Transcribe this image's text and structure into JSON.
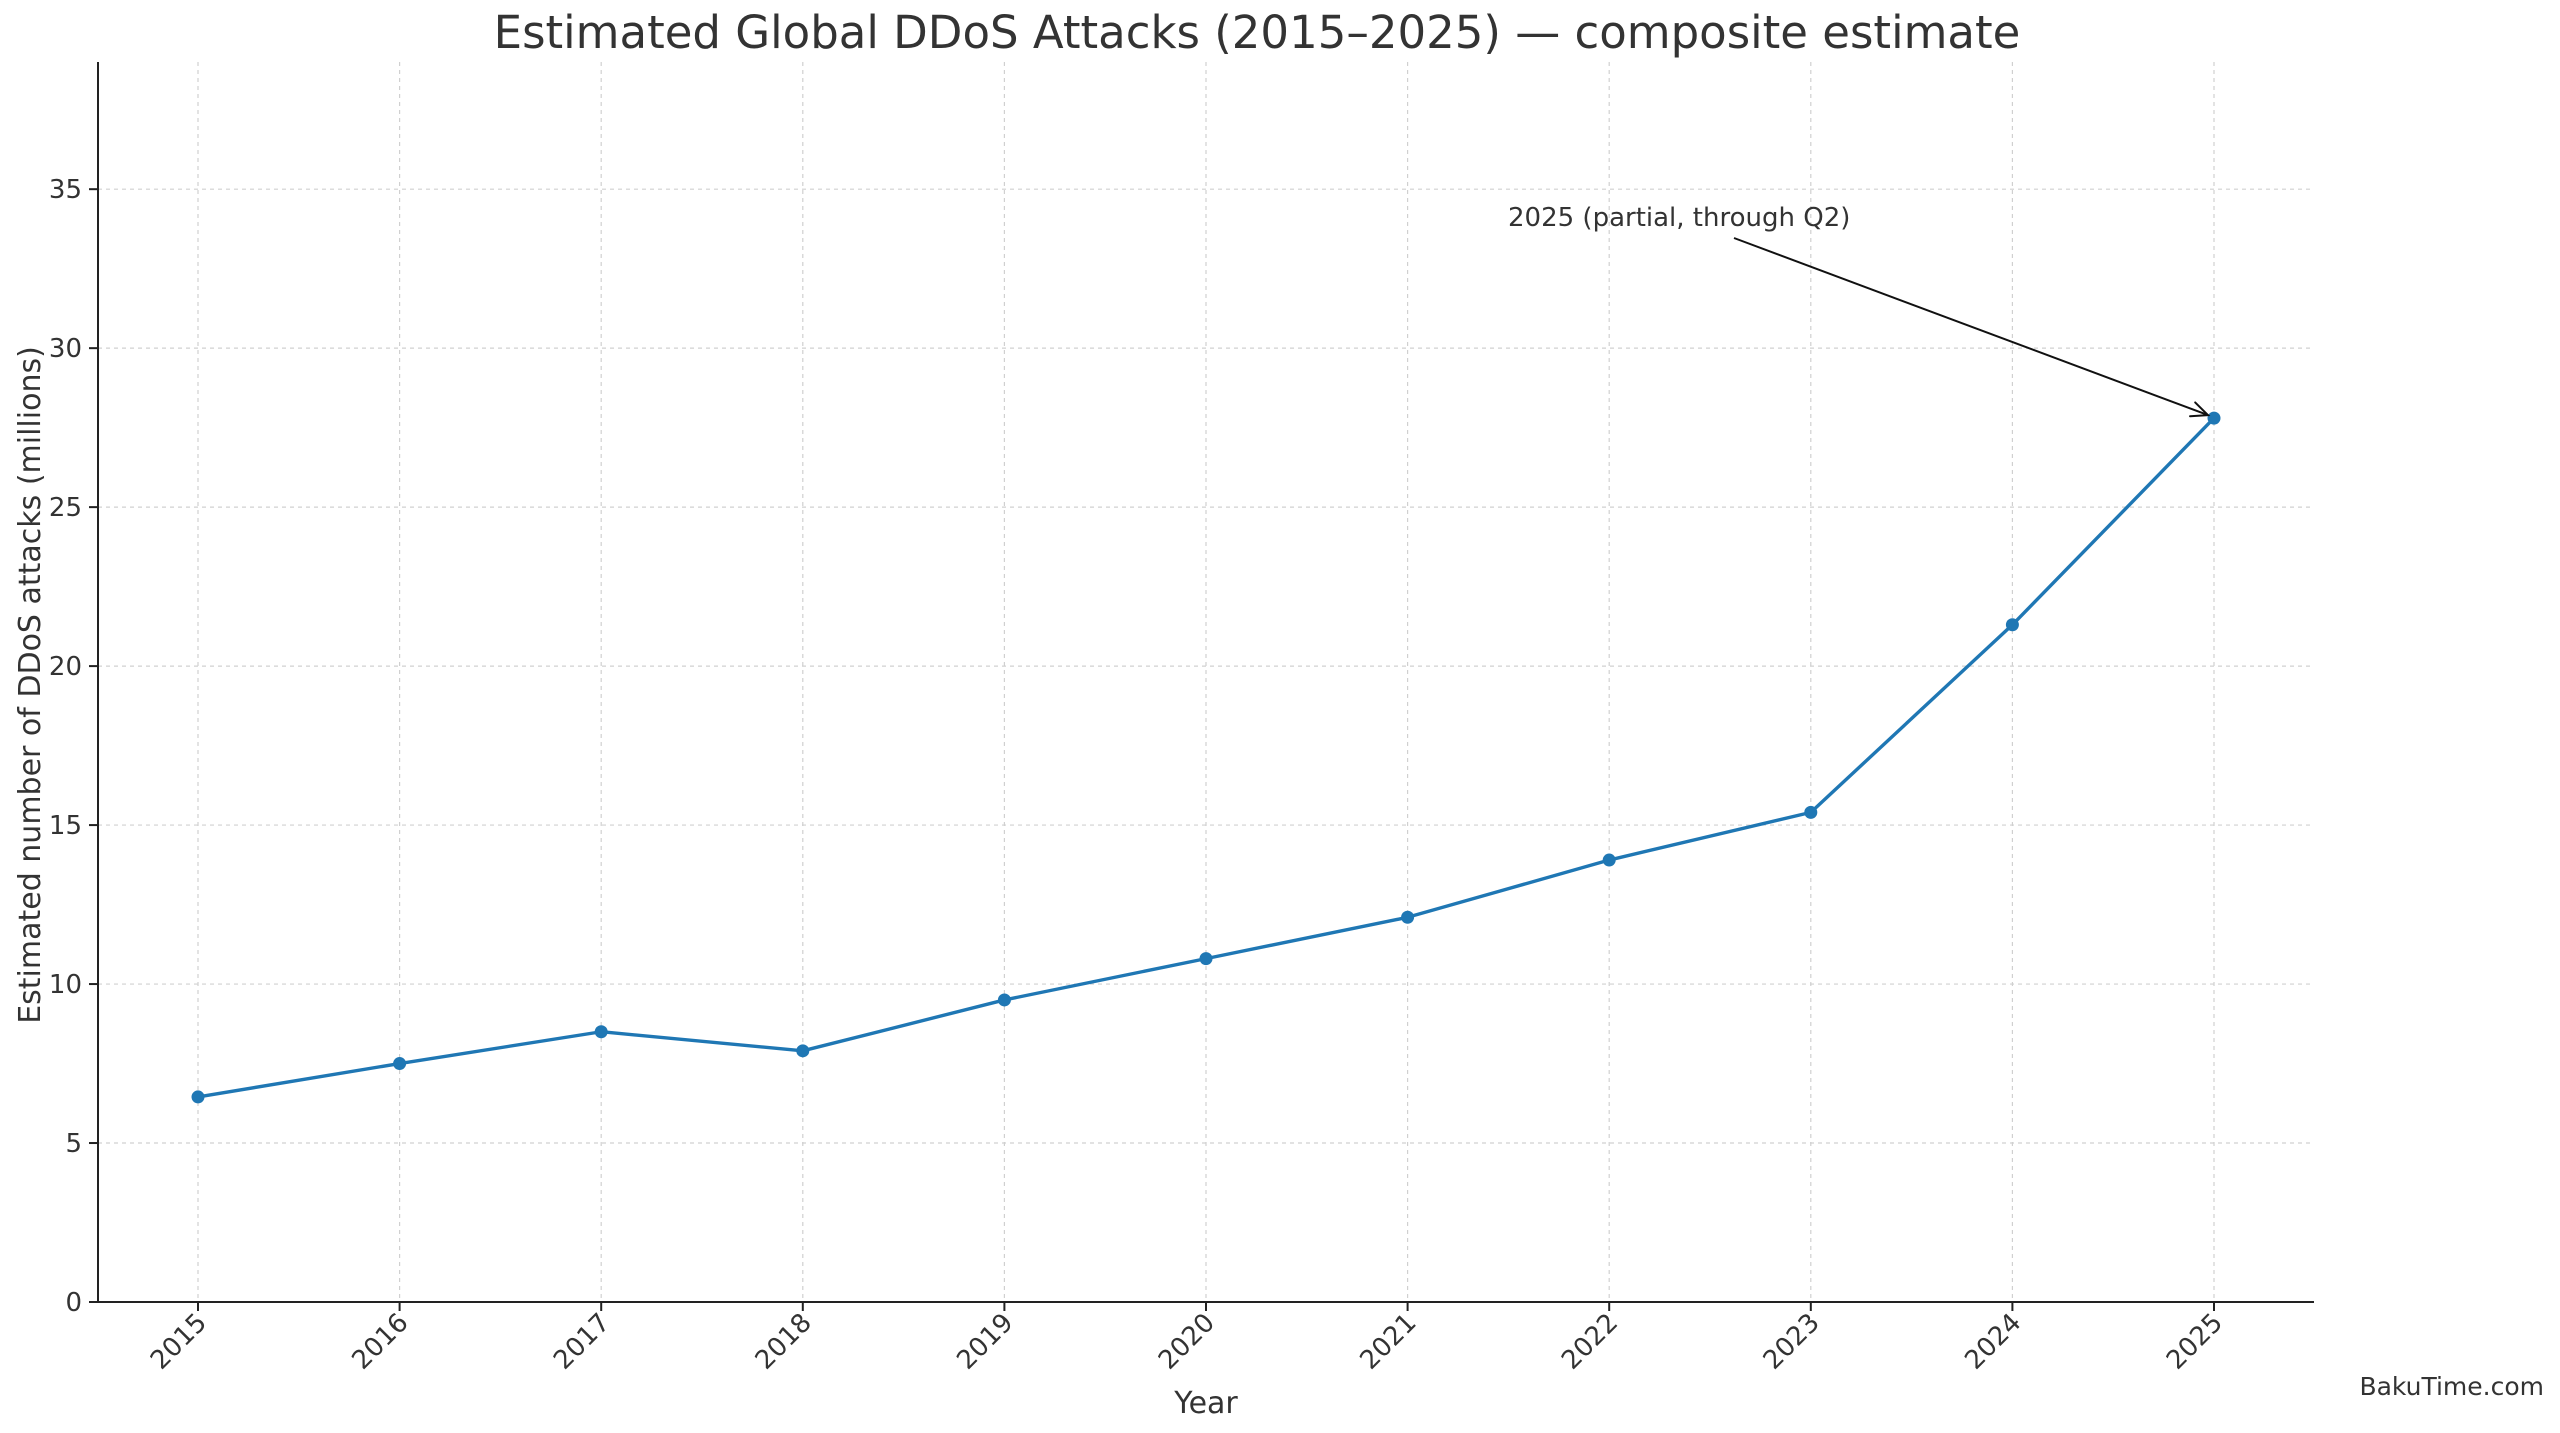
{
  "chart_data": {
    "type": "line",
    "title": "Estimated Global DDoS Attacks (2015–2025) — composite estimate",
    "xlabel": "Year",
    "ylabel": "Estimated number of DDoS attacks (millions)",
    "categories": [
      "2015",
      "2016",
      "2017",
      "2018",
      "2019",
      "2020",
      "2021",
      "2022",
      "2023",
      "2024",
      "2025"
    ],
    "series": [
      {
        "values": [
          6.45,
          7.5,
          8.5,
          7.9,
          9.5,
          10.8,
          12.1,
          13.9,
          15.4,
          21.3,
          27.8
        ],
        "color": "#1f77b4",
        "marker": "circle"
      }
    ],
    "ylim": [
      0,
      39
    ],
    "yticks": [
      0,
      5,
      10,
      15,
      20,
      25,
      30,
      35
    ],
    "grid": true,
    "annotations": [
      {
        "text": "2025 (partial, through Q2)",
        "x": "2025",
        "y": 27.8
      }
    ]
  },
  "watermark": "BakuTime.com"
}
